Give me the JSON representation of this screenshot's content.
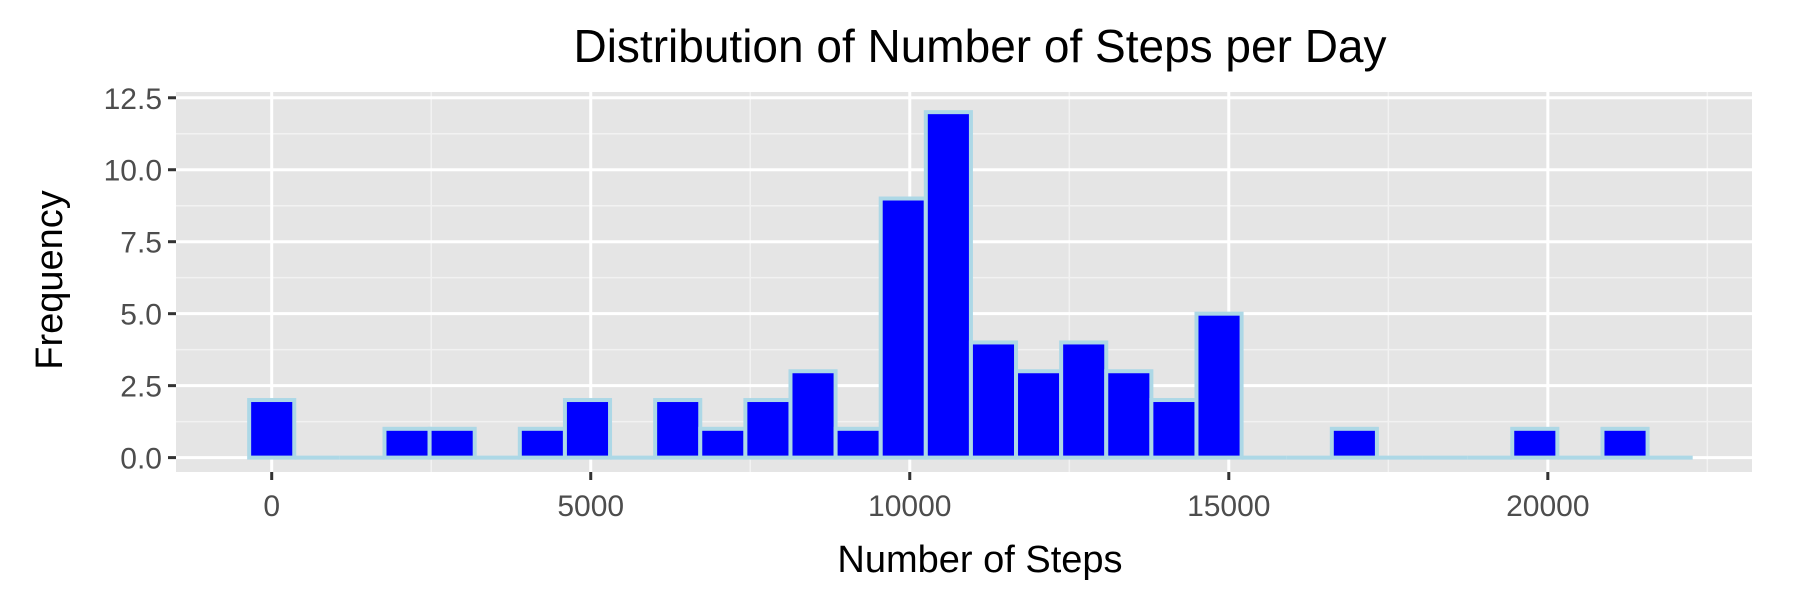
{
  "chart_data": {
    "type": "bar",
    "title": "Distribution of Number of Steps per Day",
    "xlabel": "Number of Steps",
    "ylabel": "Frequency",
    "xlim": [
      -1500,
      23200
    ],
    "ylim": [
      -0.5,
      12.7
    ],
    "x_ticks": [
      0,
      5000,
      10000,
      15000,
      20000
    ],
    "x_tick_labels": [
      "0",
      "5000",
      "10000",
      "15000",
      "20000"
    ],
    "y_ticks": [
      0,
      2.5,
      5,
      7.5,
      10,
      12.5
    ],
    "y_tick_labels": [
      "0.0",
      "2.5",
      "5.0",
      "7.5",
      "10.0",
      "12.5"
    ],
    "grid": true,
    "bin_width": 707,
    "bin_centers": [
      0,
      707,
      1414,
      2121,
      2828,
      3535,
      4242,
      4949,
      5656,
      6363,
      7070,
      7777,
      8484,
      9191,
      9898,
      10605,
      11312,
      12019,
      12726,
      13433,
      14140,
      14847,
      15554,
      16261,
      16968,
      17675,
      18382,
      19089,
      19796,
      20503,
      21210,
      21917
    ],
    "values": [
      2,
      0,
      0,
      1,
      1,
      0,
      1,
      2,
      0,
      2,
      1,
      2,
      3,
      1,
      9,
      12,
      4,
      3,
      4,
      3,
      2,
      5,
      0,
      0,
      1,
      0,
      0,
      0,
      1,
      0,
      1,
      0
    ],
    "colors": {
      "fill": "#0000FF",
      "outline": "#ADD8E6",
      "panel": "#E5E5E5",
      "grid_major": "#FFFFFF",
      "grid_minor": "#F2F2F2",
      "text": "#000000",
      "tick_text": "#4D4D4D",
      "tick_mark": "#333333"
    }
  }
}
